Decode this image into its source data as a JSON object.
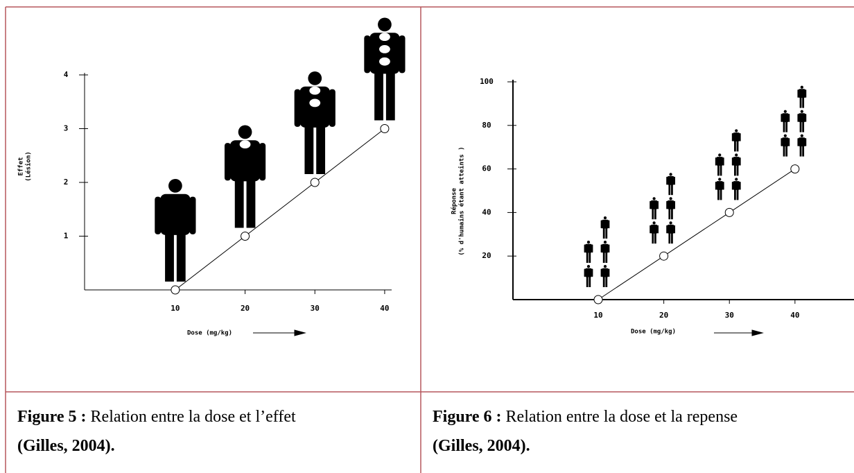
{
  "chart_data": [
    {
      "type": "line",
      "x": [
        10,
        20,
        30,
        40
      ],
      "values": [
        0,
        1,
        2,
        3
      ],
      "color": "#000000",
      "xlim": [
        -3,
        41
      ],
      "ylim": [
        0,
        4
      ],
      "xticks": [
        10,
        20,
        30,
        40
      ],
      "yticks": [
        1,
        2,
        3,
        4
      ],
      "xlabel": "Dose (mg/kg)",
      "ylabel": [
        "Effet",
        "(Lésion)"
      ]
    },
    {
      "type": "line",
      "x": [
        10,
        20,
        30,
        40
      ],
      "values": [
        0,
        20,
        40,
        60
      ],
      "color": "#000000",
      "xlim": [
        -3,
        49
      ],
      "ylim": [
        0,
        100
      ],
      "xticks": [
        10,
        20,
        30,
        40
      ],
      "yticks": [
        20,
        40,
        60,
        80,
        100
      ],
      "xlabel": "Dose (mg/kg)",
      "ylabel": [
        "Réponse",
        "(% d'humains étant atteints )"
      ]
    }
  ],
  "captions": [
    {
      "label": "Figure 5 :",
      "text": "Relation entre la dose et l’effet",
      "source": "(Gilles, 2004)."
    },
    {
      "label": "Figure 6 :",
      "text": "Relation entre la dose et la repense",
      "source": "(Gilles, 2004)."
    }
  ]
}
